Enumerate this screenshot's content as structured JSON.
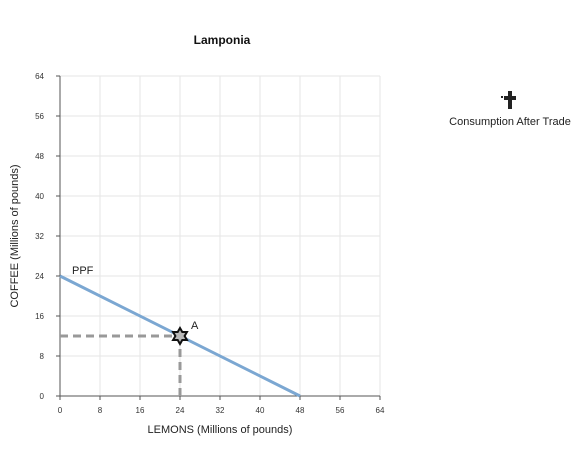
{
  "chart_data": {
    "type": "line",
    "title": "Lamponia",
    "xlabel": "LEMONS (Millions of pounds)",
    "ylabel": "COFFEE (Millions of pounds)",
    "xlim": [
      0,
      64
    ],
    "ylim": [
      0,
      64
    ],
    "x_ticks": [
      0,
      8,
      16,
      24,
      32,
      40,
      48,
      56,
      64
    ],
    "y_ticks": [
      0,
      8,
      16,
      24,
      32,
      40,
      48,
      56,
      64
    ],
    "grid": true,
    "series": [
      {
        "name": "PPF",
        "x": [
          0,
          48
        ],
        "y": [
          24,
          0
        ],
        "color": "#7ba7d2"
      }
    ],
    "points": [
      {
        "label": "A",
        "x": 24,
        "y": 12,
        "marker": "star",
        "guides": true
      }
    ]
  },
  "legend": {
    "tool_icon": "cross-plus-icon",
    "tool_label": "Consumption After Trade"
  },
  "colors": {
    "ppf": "#7ba7d2",
    "guide": "#999999",
    "grid": "#e6e6e6",
    "axis": "#555555"
  }
}
